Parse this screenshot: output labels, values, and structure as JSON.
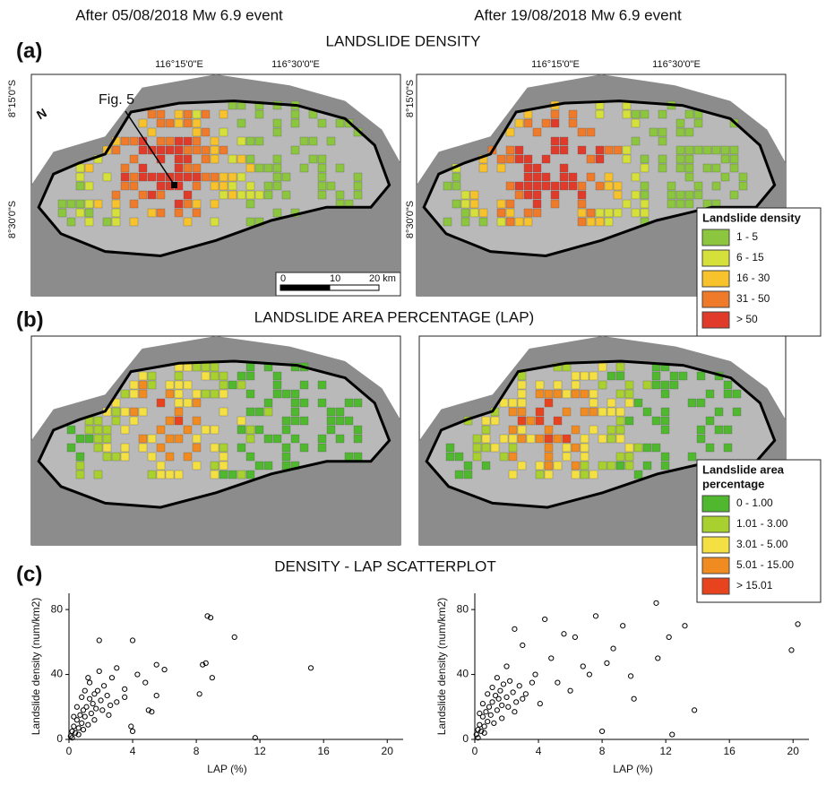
{
  "headers": [
    "After 05/08/2018 Mw 6.9 event",
    "After 19/08/2018 Mw 6.9 event"
  ],
  "panels": [
    {
      "tag": "(a)",
      "title": "LANDSLIDE DENSITY"
    },
    {
      "tag": "(b)",
      "title": "LANDSLIDE AREA PERCENTAGE (LAP)"
    },
    {
      "tag": "(c)",
      "title": "DENSITY - LAP SCATTERPLOT"
    }
  ],
  "map_labels": {
    "lon": [
      "116°15'0\"E",
      "116°30'0\"E"
    ],
    "lat": [
      "8°15'0\"S",
      "8°30'0\"S"
    ],
    "figure_ref": "Fig. 5",
    "north": "N",
    "scale": [
      "0",
      "10",
      "20 km"
    ]
  },
  "legends": {
    "density": {
      "title": [
        "Landslide density"
      ],
      "classes": [
        {
          "label": "1 - 5",
          "color": "#8cc63f"
        },
        {
          "label": "6 - 15",
          "color": "#d6e03a"
        },
        {
          "label": "16 - 30",
          "color": "#f7c22b"
        },
        {
          "label": "31 - 50",
          "color": "#ee7a2a"
        },
        {
          "label": "> 50",
          "color": "#e03a2a"
        }
      ]
    },
    "lap": {
      "title": [
        "Landslide area",
        "percentage"
      ],
      "classes": [
        {
          "label": "0 - 1.00",
          "color": "#4fb82e"
        },
        {
          "label": "1.01 - 3.00",
          "color": "#a8d02f"
        },
        {
          "label": "3.01 - 5.00",
          "color": "#f4e043"
        },
        {
          "label": "5.01 - 15.00",
          "color": "#f08b22"
        },
        {
          "label": "> 15.01",
          "color": "#e8431f"
        }
      ]
    }
  },
  "chart_data": [
    {
      "type": "scatter",
      "xlabel": "LAP (%)",
      "ylabel": "Landslide density (num/km2)",
      "color": "#000000",
      "xlim": [
        0,
        21
      ],
      "ylim": [
        0,
        90
      ],
      "xticks": [
        0,
        4,
        8,
        12,
        16,
        20
      ],
      "yticks": [
        0,
        40,
        80
      ],
      "x": [
        0.1,
        0.2,
        0.3,
        0.4,
        0.5,
        0.6,
        0.7,
        0.8,
        0.9,
        1.0,
        1.1,
        1.2,
        1.3,
        1.4,
        1.5,
        1.6,
        1.7,
        1.8,
        2.0,
        2.2,
        2.4,
        2.6,
        0.3,
        0.5,
        0.8,
        1.0,
        1.3,
        1.6,
        2.1,
        2.5,
        3.0,
        3.5,
        0.2,
        0.6,
        0.9,
        1.2,
        1.9,
        4.0,
        8.7,
        8.9,
        10.4,
        15.2,
        11.7,
        8.2,
        8.4,
        8.6,
        9.0,
        6.0,
        5.5,
        5.0,
        5.2,
        4.0,
        3.9,
        1.9,
        2.7,
        4.8,
        5.5,
        3.0,
        4.3,
        3.5
      ],
      "values": [
        2,
        5,
        8,
        4,
        12,
        7,
        15,
        10,
        18,
        14,
        20,
        9,
        25,
        16,
        22,
        28,
        19,
        30,
        24,
        33,
        27,
        21,
        14,
        20,
        26,
        30,
        35,
        12,
        18,
        15,
        23,
        31,
        1,
        3,
        6,
        38,
        42,
        61,
        76,
        75,
        63,
        44,
        1,
        28,
        46,
        47,
        38,
        43,
        46,
        18,
        17,
        5,
        8,
        61,
        38,
        35,
        27,
        44,
        40,
        26
      ]
    },
    {
      "type": "scatter",
      "xlabel": "LAP (%)",
      "ylabel": "Landslide density (num/km2)",
      "color": "#000000",
      "xlim": [
        0,
        21
      ],
      "ylim": [
        0,
        90
      ],
      "xticks": [
        0,
        4,
        8,
        12,
        16,
        20
      ],
      "yticks": [
        0,
        40,
        80
      ],
      "x": [
        0.1,
        0.2,
        0.3,
        0.4,
        0.5,
        0.6,
        0.7,
        0.8,
        0.9,
        1.0,
        1.1,
        1.2,
        1.3,
        1.4,
        1.5,
        1.6,
        1.7,
        1.8,
        2.0,
        2.2,
        2.4,
        2.6,
        2.8,
        3.2,
        0.3,
        0.5,
        0.8,
        1.1,
        1.4,
        1.7,
        2.1,
        2.5,
        3.0,
        3.6,
        0.2,
        0.6,
        20.3,
        19.9,
        11.4,
        13.2,
        12.2,
        12.4,
        13.8,
        11.5,
        9.3,
        7.6,
        8.7,
        8.3,
        10.0,
        9.8,
        4.4,
        2.5,
        5.6,
        6.3,
        7.2,
        8.0,
        3.8,
        4.8,
        5.2,
        6.0,
        3.0,
        2.0,
        4.1,
        6.8
      ],
      "values": [
        3,
        6,
        9,
        5,
        14,
        8,
        17,
        11,
        20,
        15,
        23,
        10,
        27,
        18,
        25,
        30,
        21,
        34,
        26,
        36,
        29,
        23,
        33,
        28,
        16,
        22,
        28,
        32,
        38,
        13,
        20,
        17,
        25,
        35,
        1,
        4,
        71,
        55,
        84,
        70,
        63,
        3,
        18,
        50,
        70,
        76,
        56,
        47,
        25,
        39,
        74,
        68,
        65,
        63,
        40,
        5,
        40,
        50,
        35,
        30,
        58,
        45,
        22,
        45
      ]
    }
  ]
}
